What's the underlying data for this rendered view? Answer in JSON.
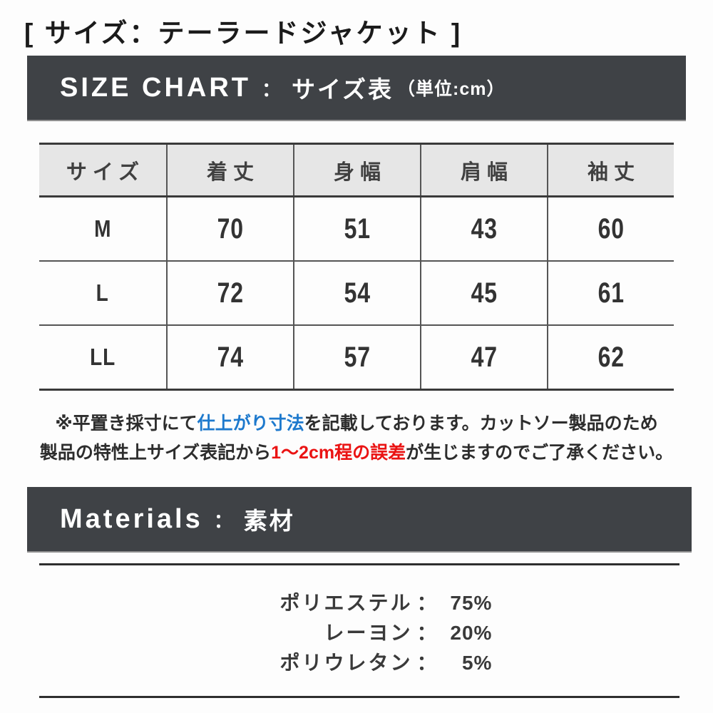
{
  "page": {
    "title": "[ サイズ：テーラードジャケット ]"
  },
  "size_chart": {
    "heading_en": "SIZE CHART",
    "heading_separator": "：",
    "heading_jp": "サイズ表",
    "heading_unit": "（単位:cm）",
    "table": {
      "columns": [
        "サイズ",
        "着丈",
        "身幅",
        "肩幅",
        "袖丈"
      ],
      "rows": [
        {
          "size": "M",
          "values": [
            "70",
            "51",
            "43",
            "60"
          ]
        },
        {
          "size": "L",
          "values": [
            "72",
            "54",
            "45",
            "61"
          ]
        },
        {
          "size": "LL",
          "values": [
            "74",
            "57",
            "47",
            "62"
          ]
        }
      ]
    },
    "note": {
      "line1_pre": "※平置き採寸にて",
      "line1_blue": "仕上がり寸法",
      "line1_post": "を記載しております。カットソー製品のため",
      "line2_pre": "製品の特性上サイズ表記から",
      "line2_red": "1〜2cm程の誤差",
      "line2_post": "が生じますのでご了承ください。"
    }
  },
  "materials": {
    "heading_en": "Materials",
    "heading_separator": "：",
    "heading_jp": "素材",
    "colon": "：",
    "items": [
      {
        "name": "ポリエステル",
        "value": "75",
        "unit": "%"
      },
      {
        "name": "レーヨン",
        "value": "20",
        "unit": "%"
      },
      {
        "name": "ポリウレタン",
        "value": "5",
        "unit": "%"
      }
    ]
  },
  "colors": {
    "banner_background": "#3f4246",
    "table_header_background": "#e6e6e6",
    "accent_blue": "#1d79cd",
    "accent_red": "#ea1313"
  }
}
